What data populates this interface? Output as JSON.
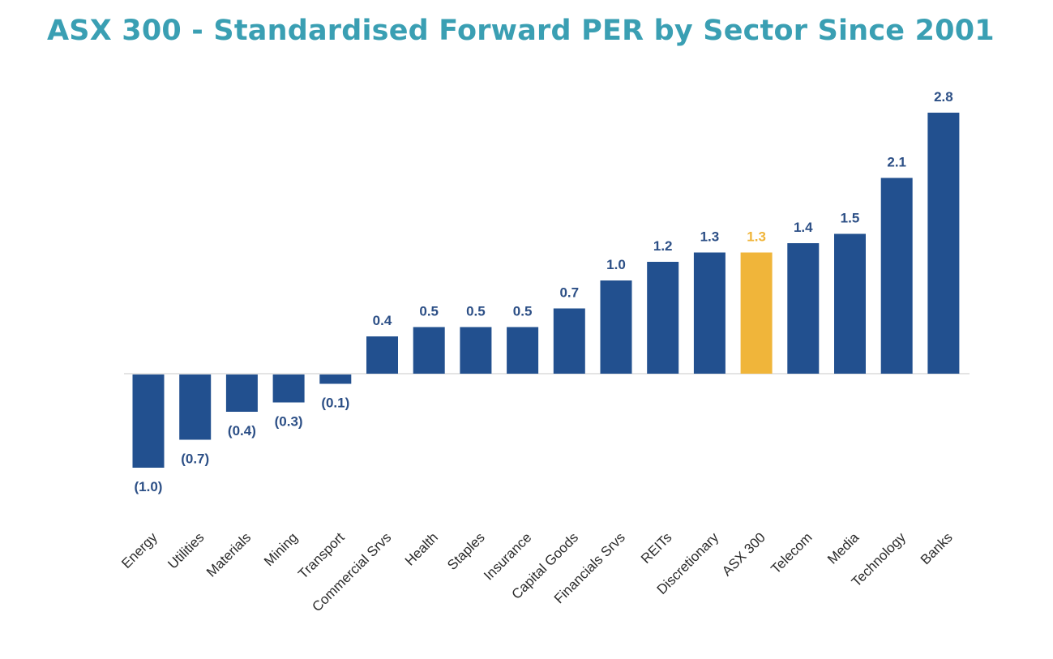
{
  "title": "ASX 300 - Standardised Forward PER by Sector Since 2001",
  "colors": {
    "title": "#3a9fb3",
    "bar": "#22508f",
    "highlight": "#f0b53a",
    "label": "#2c4f86",
    "highlight_label": "#f0b53a",
    "axis": "#e4e4e4"
  },
  "chart_data": {
    "type": "bar",
    "title": "ASX 300 - Standardised Forward PER by Sector Since 2001",
    "xlabel": "",
    "ylabel": "",
    "ylim": [
      -1.0,
      2.8
    ],
    "grid": false,
    "legend": "none",
    "negative_label_format": "parentheses",
    "highlight_category": "ASX 300",
    "categories": [
      "Energy",
      "Utilities",
      "Materials",
      "Mining",
      "Transport",
      "Commercial Srvs",
      "Health",
      "Staples",
      "Insurance",
      "Capital Goods",
      "Financials Srvs",
      "REITs",
      "Discretionary",
      "ASX 300",
      "Telecom",
      "Media",
      "Technology",
      "Banks"
    ],
    "values": [
      -1.0,
      -0.7,
      -0.4,
      -0.3,
      -0.1,
      0.4,
      0.5,
      0.5,
      0.5,
      0.7,
      1.0,
      1.2,
      1.3,
      1.3,
      1.4,
      1.5,
      2.1,
      2.8
    ],
    "labels": [
      "(1.0)",
      "(0.7)",
      "(0.4)",
      "(0.3)",
      "(0.1)",
      "0.4",
      "0.5",
      "0.5",
      "0.5",
      "0.7",
      "1.0",
      "1.2",
      "1.3",
      "1.3",
      "1.4",
      "1.5",
      "2.1",
      "2.8"
    ]
  }
}
